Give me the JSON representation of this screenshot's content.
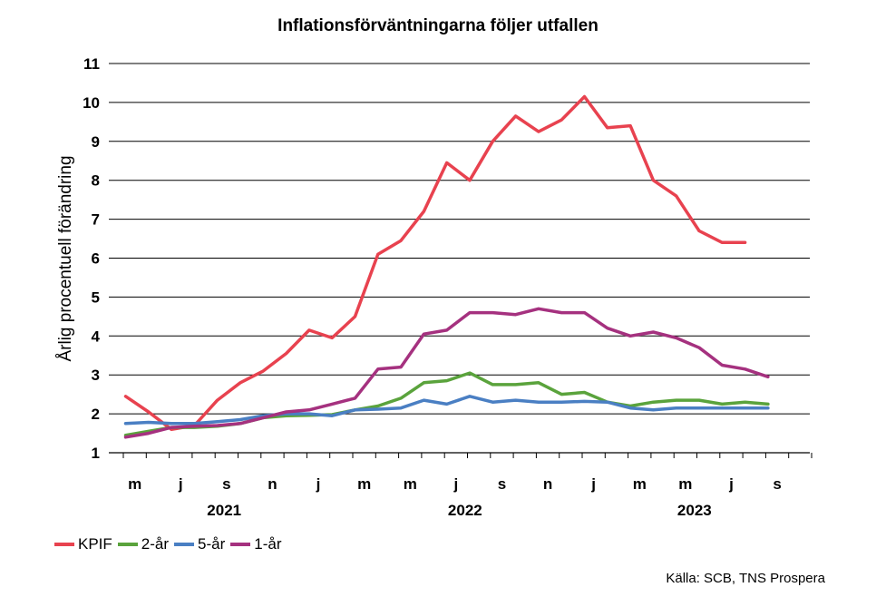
{
  "chart_data": {
    "type": "line",
    "title": "Inflationsförväntningarna följer utfallen",
    "ylabel": "Årlig procentuell förändring",
    "xlabel": "",
    "ylim": [
      1,
      11
    ],
    "yticks": [
      "1",
      "2",
      "3",
      "4",
      "5",
      "6",
      "7",
      "8",
      "9",
      "10",
      "11"
    ],
    "xticks": [
      "m",
      "j",
      "s",
      "n",
      "j",
      "m",
      "m",
      "j",
      "s",
      "n",
      "j",
      "m",
      "m",
      "j",
      "s"
    ],
    "years": [
      "2021",
      "2022",
      "2023"
    ],
    "grid": true,
    "legend_position": "bottom-left",
    "x": [
      "2021-03",
      "2021-04",
      "2021-05",
      "2021-06",
      "2021-07",
      "2021-08",
      "2021-09",
      "2021-10",
      "2021-11",
      "2021-12",
      "2022-01",
      "2022-02",
      "2022-03",
      "2022-04",
      "2022-05",
      "2022-06",
      "2022-07",
      "2022-08",
      "2022-09",
      "2022-10",
      "2022-11",
      "2022-12",
      "2023-01",
      "2023-02",
      "2023-03",
      "2023-04",
      "2023-05",
      "2023-06",
      "2023-07",
      "2023-08",
      "2023-09"
    ],
    "series": [
      {
        "name": "KPIF",
        "color": "#e8424f",
        "values": [
          2.45,
          2.05,
          1.6,
          1.7,
          2.35,
          2.8,
          3.1,
          3.55,
          4.15,
          3.95,
          4.5,
          6.1,
          6.45,
          7.2,
          8.45,
          8.0,
          9.0,
          9.65,
          9.25,
          9.55,
          10.15,
          9.35,
          9.4,
          8.0,
          7.6,
          6.7,
          6.4,
          6.4,
          null,
          null,
          null
        ]
      },
      {
        "name": "2-år",
        "color": "#5aa33c",
        "values": [
          1.45,
          1.55,
          1.65,
          1.65,
          1.68,
          1.75,
          1.9,
          1.95,
          1.96,
          1.98,
          2.1,
          2.2,
          2.4,
          2.8,
          2.85,
          3.05,
          2.75,
          2.75,
          2.8,
          2.5,
          2.55,
          2.3,
          2.2,
          2.3,
          2.35,
          2.35,
          2.25,
          2.3,
          2.25,
          null,
          null
        ]
      },
      {
        "name": "5-år",
        "color": "#4a7fc3",
        "values": [
          1.75,
          1.78,
          1.75,
          1.75,
          1.8,
          1.85,
          1.95,
          2.0,
          2.0,
          1.95,
          2.1,
          2.12,
          2.15,
          2.35,
          2.25,
          2.45,
          2.3,
          2.35,
          2.3,
          2.3,
          2.32,
          2.3,
          2.15,
          2.1,
          2.15,
          2.15,
          2.15,
          2.15,
          2.15,
          null,
          null
        ]
      },
      {
        "name": "1-år",
        "color": "#a5317f",
        "values": [
          1.4,
          1.5,
          1.65,
          1.68,
          1.7,
          1.75,
          1.9,
          2.05,
          2.1,
          2.25,
          2.4,
          3.15,
          3.2,
          4.05,
          4.15,
          4.6,
          4.6,
          4.55,
          4.7,
          4.6,
          4.6,
          4.2,
          4.0,
          4.1,
          3.95,
          3.7,
          3.25,
          3.15,
          2.95,
          null,
          null
        ]
      }
    ],
    "source": "Källa: SCB, TNS Prospera"
  }
}
